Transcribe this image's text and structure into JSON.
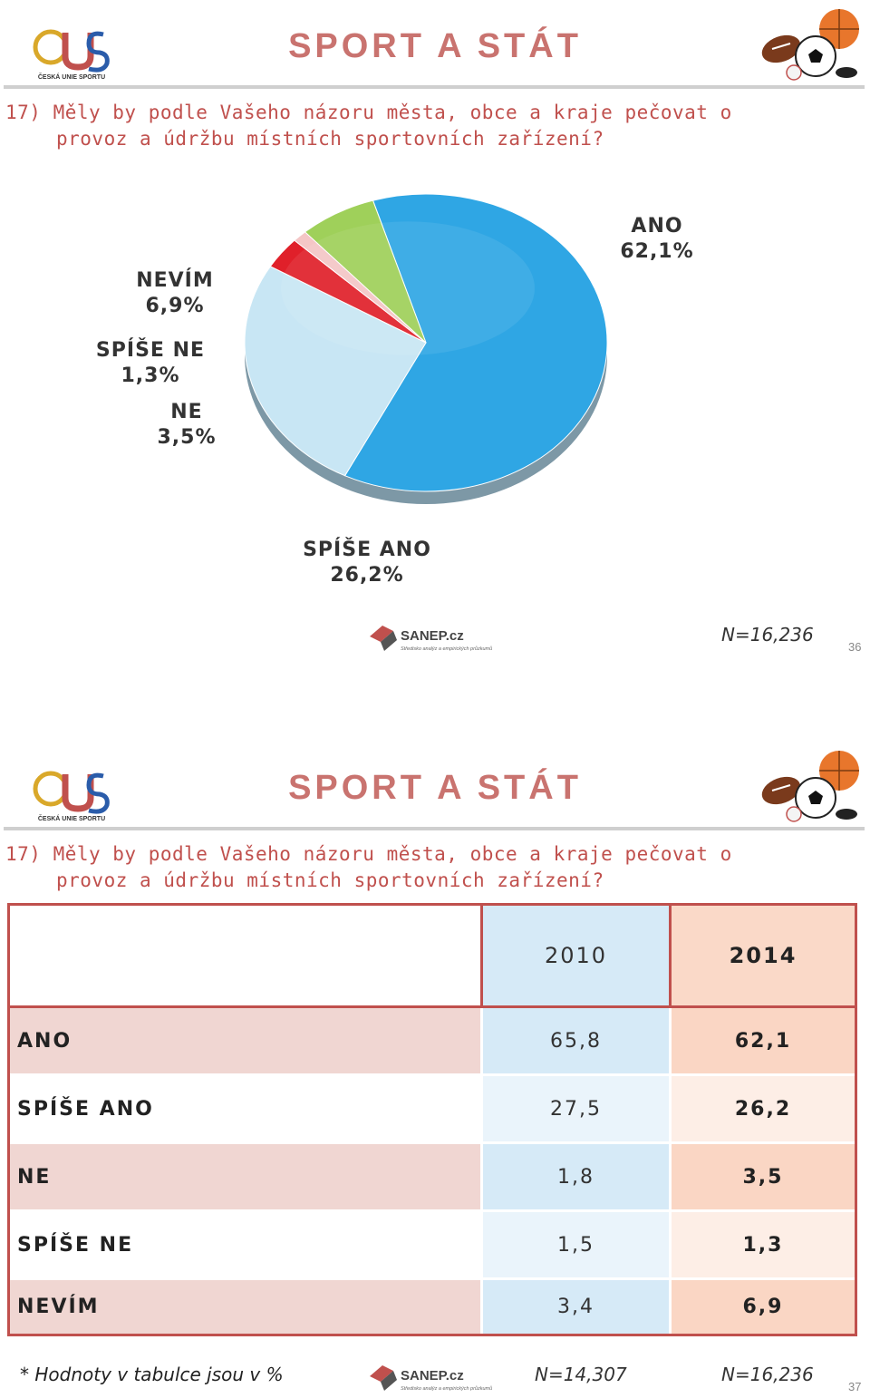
{
  "header": {
    "title": "SPORT A STÁT",
    "logo_text": "ČESKÁ UNIE SPORTU"
  },
  "question": {
    "line1": "17) Měly by podle Vašeho názoru města, obce a kraje pečovat o",
    "line2": "provoz a údržbu místních sportovních zařízení?"
  },
  "slide1": {
    "n_value": "N=16,236",
    "page": "36"
  },
  "sanep": {
    "name": "SANEP.cz",
    "tagline": "Středisko analýz a empirických průzkumů"
  },
  "chart_data": {
    "type": "pie",
    "slices": [
      {
        "label": "ANO",
        "value": 62.1,
        "value_text": "62,1%",
        "color": "#2fa6e4"
      },
      {
        "label": "SPÍŠE ANO",
        "value": 26.2,
        "value_text": "26,2%",
        "color": "#c8e6f4"
      },
      {
        "label": "NE",
        "value": 3.5,
        "value_text": "3,5%",
        "color": "#e0202a"
      },
      {
        "label": "SPÍŠE NE",
        "value": 1.3,
        "value_text": "1,3%",
        "color": "#f4c6c6"
      },
      {
        "label": "NEVÍM",
        "value": 6.9,
        "value_text": "6,9%",
        "color": "#9fd05a"
      }
    ]
  },
  "table": {
    "headers": [
      "2010",
      "2014"
    ],
    "rows": [
      {
        "label": "ANO",
        "v2010": "65,8",
        "v2014": "62,1"
      },
      {
        "label": "SPÍŠE ANO",
        "v2010": "27,5",
        "v2014": "26,2"
      },
      {
        "label": "NE",
        "v2010": "1,8",
        "v2014": "3,5"
      },
      {
        "label": "SPÍŠE NE",
        "v2010": "1,5",
        "v2014": "1,3"
      },
      {
        "label": "NEVÍM",
        "v2010": "3,4",
        "v2014": "6,9"
      }
    ]
  },
  "slide2": {
    "footnote": "* Hodnoty v tabulce jsou v %",
    "n_2010": "N=14,307",
    "n_2014": "N=16,236",
    "page": "37"
  },
  "colors": {
    "accent": "#c0504d",
    "title": "#c9736f"
  }
}
